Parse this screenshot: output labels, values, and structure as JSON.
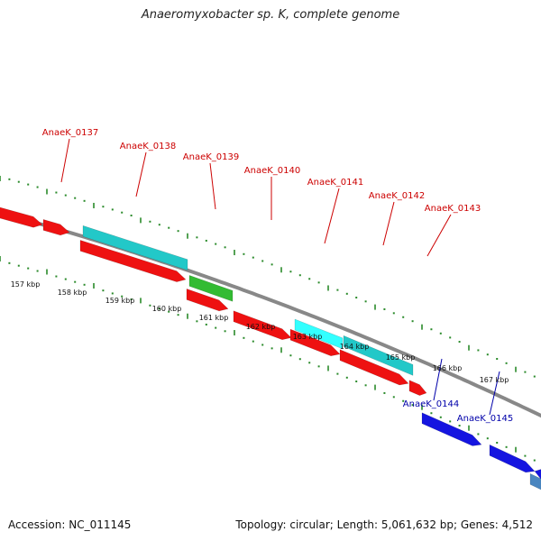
{
  "title": "Anaeromyxobacter sp. K, complete genome",
  "footer": {
    "accession": "Accession: NC_011145",
    "summary": "Topology: circular; Length: 5,061,632 bp; Genes: 4,512"
  },
  "colors": {
    "backbone": "#888888",
    "tick": "#2a8a2a",
    "cds_red": "#ee1111",
    "cds_cyan": "#22c8c8",
    "cds_cyan_light": "#33ffff",
    "cds_green": "#33bb33",
    "cds_blue": "#1515e0",
    "cds_steel": "#4a86c0",
    "label_red": "#cc0000",
    "label_blue": "#0000aa"
  },
  "kbp_labels": [
    "157 kbp",
    "158 kbp",
    "159 kbp",
    "160 kbp",
    "161 kbp",
    "162 kbp",
    "163 kbp",
    "164 kbp",
    "165 kbp",
    "166 kbp",
    "167 kbp"
  ],
  "gene_labels": [
    {
      "text": "AnaeK_0137",
      "strand": "forward"
    },
    {
      "text": "AnaeK_0138",
      "strand": "forward"
    },
    {
      "text": "AnaeK_0139",
      "strand": "forward"
    },
    {
      "text": "AnaeK_0140",
      "strand": "forward"
    },
    {
      "text": "AnaeK_0141",
      "strand": "forward"
    },
    {
      "text": "AnaeK_0142",
      "strand": "forward"
    },
    {
      "text": "AnaeK_0143",
      "strand": "forward"
    },
    {
      "text": "AnaeK_0144",
      "strand": "reverse"
    },
    {
      "text": "AnaeK_0145",
      "strand": "reverse"
    }
  ]
}
